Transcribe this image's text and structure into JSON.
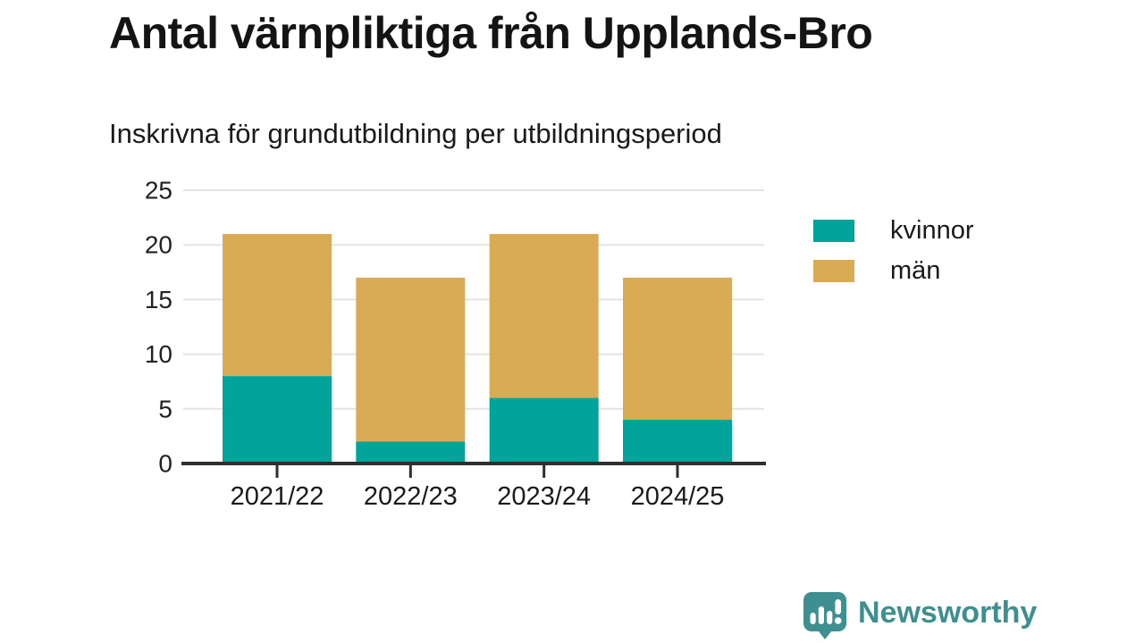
{
  "title": "Antal värnpliktiga från Upplands-Bro",
  "subtitle": "Inskrivna för grundutbildning per utbildningsperiod",
  "chart_data": {
    "type": "bar",
    "stacked": true,
    "categories": [
      "2021/22",
      "2022/23",
      "2023/24",
      "2024/25"
    ],
    "series": [
      {
        "name": "kvinnor",
        "color": "#00a49b",
        "values": [
          8,
          2,
          6,
          4
        ]
      },
      {
        "name": "män",
        "color": "#d9ab55",
        "values": [
          13,
          15,
          15,
          13
        ]
      }
    ],
    "stack_totals": [
      21,
      17,
      21,
      17
    ],
    "xlabel": "",
    "ylabel": "",
    "ylim": [
      0,
      25
    ],
    "yticks": [
      0,
      5,
      10,
      15,
      20,
      25
    ],
    "grid": true,
    "legend_position": "right",
    "axis_color": "#2e2e2e",
    "gridline_color": "#e4e4e4",
    "tick_label_color": "#222222"
  },
  "branding": {
    "logo_text": "Newsworthy",
    "logo_color": "#3e8f8f",
    "logo_icon": "speech-bubble-bar-chart-icon"
  }
}
